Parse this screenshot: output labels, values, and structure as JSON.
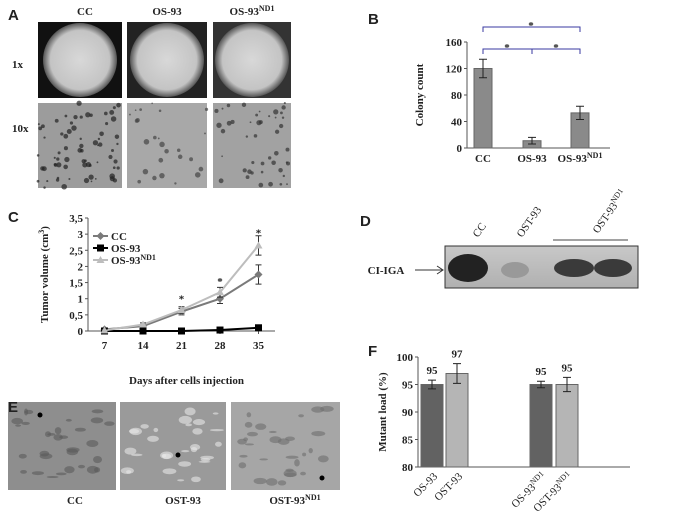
{
  "panel_labels": [
    "A",
    "B",
    "C",
    "D",
    "E",
    "F"
  ],
  "panel_a": {
    "columns": [
      "CC",
      "OS-93",
      "OS-93"
    ],
    "column_sups": [
      null,
      null,
      "ND1"
    ],
    "rows": [
      "1x",
      "10x"
    ]
  },
  "panel_d": {
    "lanes": [
      "CC",
      "OST-93",
      "OST-93"
    ],
    "lane_sups": [
      null,
      null,
      "ND1"
    ],
    "band_label": "CI-IGA"
  },
  "panel_e": {
    "labels": [
      "CC",
      "OST-93",
      "OST-93"
    ],
    "label_sups": [
      null,
      null,
      "ND1"
    ]
  },
  "chart_data": [
    {
      "type": "bar",
      "ylabel": "Colony count",
      "categories": [
        "CC",
        "OS-93",
        "OS-93"
      ],
      "category_sups": [
        null,
        null,
        "ND1"
      ],
      "values": [
        120,
        11,
        53
      ],
      "errors": [
        14,
        5,
        10
      ],
      "color": "#8a8a8a",
      "ylim": [
        0,
        160
      ],
      "yticks": [
        0,
        40,
        80,
        120,
        160
      ],
      "annotations": [
        "*",
        "*",
        "*"
      ]
    },
    {
      "type": "line",
      "xlabel": "Days after cells injection",
      "ylabel": "Tumor volume (cm",
      "ylabel_sup": "3",
      "ylabel_end": ")",
      "x": [
        7,
        14,
        21,
        28,
        35
      ],
      "xlim": [
        4,
        38
      ],
      "xticks": [
        7,
        14,
        21,
        28,
        35
      ],
      "ylim": [
        0,
        3.5
      ],
      "yticks": [
        0,
        {
          "value": 0.5,
          "label": "0,5"
        },
        1,
        {
          "value": 1.5,
          "label": "1,5"
        },
        2,
        {
          "value": 2.5,
          "label": "2,5"
        },
        3,
        {
          "value": 3.5,
          "label": "3,5"
        }
      ],
      "series": [
        {
          "name": "CC",
          "name_sup": null,
          "color": "#7a7a7a",
          "marker": "diamond",
          "values": [
            0.05,
            0.15,
            0.6,
            1.0,
            1.75
          ],
          "errors": [
            0.03,
            0.05,
            0.1,
            0.15,
            0.3
          ]
        },
        {
          "name": "OS-93",
          "name_sup": null,
          "color": "#000000",
          "marker": "square",
          "values": [
            0,
            0,
            0,
            0.03,
            0.1
          ],
          "errors": [
            0,
            0,
            0,
            0.02,
            0.05
          ]
        },
        {
          "name": "OS-93",
          "name_sup": "ND1",
          "color": "#bdbdbd",
          "marker": "triangle",
          "values": [
            0.02,
            0.2,
            0.65,
            1.2,
            2.65
          ],
          "errors": [
            0.03,
            0.05,
            0.1,
            0.15,
            0.3
          ]
        }
      ],
      "annotations": [
        "*",
        "*",
        "*"
      ]
    },
    {
      "type": "bar",
      "ylabel": "Mutant load (%)",
      "categories": [
        "OS-93",
        "OST-93",
        "OS-93",
        "OST-93"
      ],
      "category_sups": [
        null,
        null,
        "ND1",
        "ND1"
      ],
      "values": [
        95,
        97,
        95,
        95
      ],
      "errors": [
        0.8,
        1.8,
        0.6,
        1.3
      ],
      "colors": [
        "#626262",
        "#b5b5b5",
        "#626262",
        "#b5b5b5"
      ],
      "ylim": [
        80,
        100
      ],
      "yticks": [
        80,
        85,
        90,
        95,
        100
      ]
    }
  ]
}
